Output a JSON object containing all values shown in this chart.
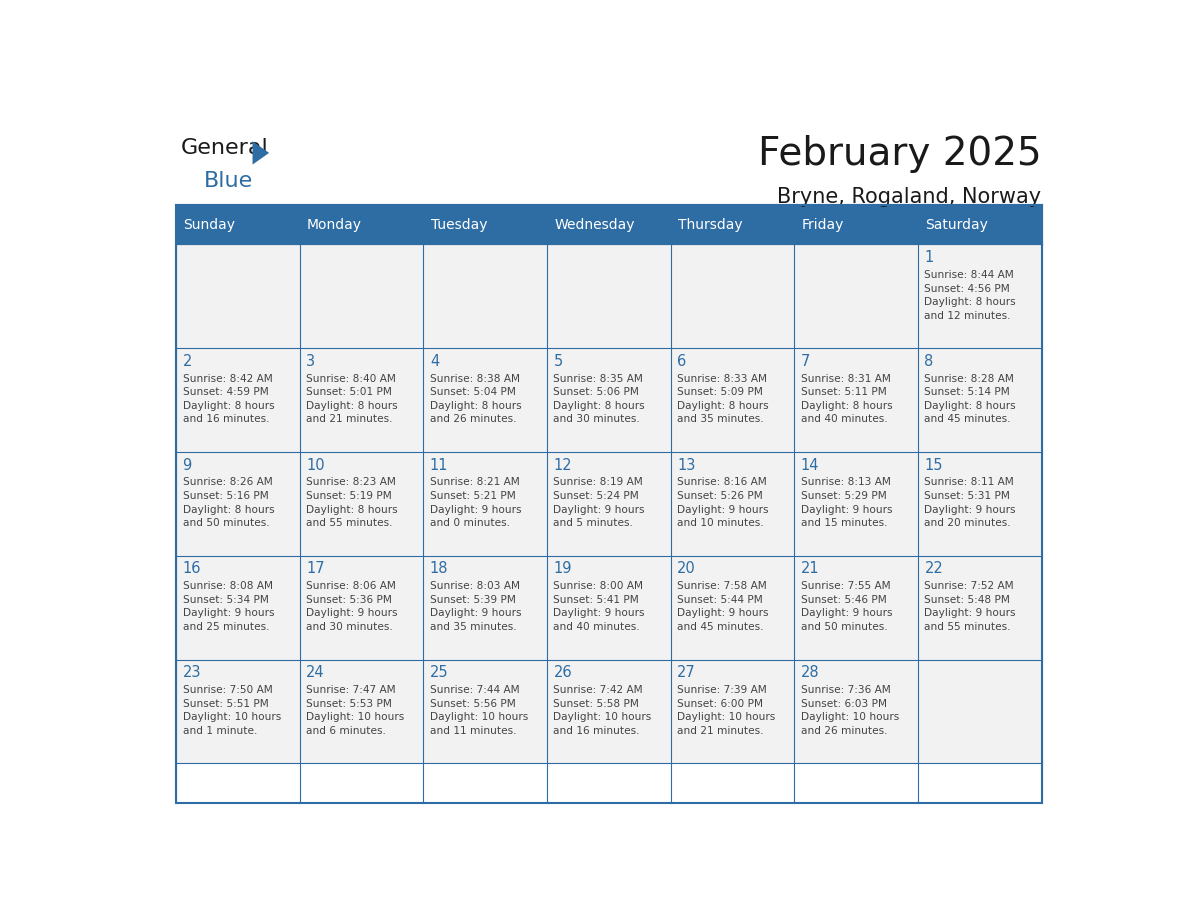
{
  "title": "February 2025",
  "subtitle": "Bryne, Rogaland, Norway",
  "header_bg": "#2E6DA4",
  "header_text_color": "#FFFFFF",
  "cell_bg": "#F2F2F2",
  "day_number_color": "#2E6DA4",
  "info_text_color": "#444444",
  "border_color": "#2E6DA4",
  "days_of_week": [
    "Sunday",
    "Monday",
    "Tuesday",
    "Wednesday",
    "Thursday",
    "Friday",
    "Saturday"
  ],
  "weeks": [
    [
      {
        "day": 0,
        "info": ""
      },
      {
        "day": 0,
        "info": ""
      },
      {
        "day": 0,
        "info": ""
      },
      {
        "day": 0,
        "info": ""
      },
      {
        "day": 0,
        "info": ""
      },
      {
        "day": 0,
        "info": ""
      },
      {
        "day": 1,
        "info": "Sunrise: 8:44 AM\nSunset: 4:56 PM\nDaylight: 8 hours\nand 12 minutes."
      }
    ],
    [
      {
        "day": 2,
        "info": "Sunrise: 8:42 AM\nSunset: 4:59 PM\nDaylight: 8 hours\nand 16 minutes."
      },
      {
        "day": 3,
        "info": "Sunrise: 8:40 AM\nSunset: 5:01 PM\nDaylight: 8 hours\nand 21 minutes."
      },
      {
        "day": 4,
        "info": "Sunrise: 8:38 AM\nSunset: 5:04 PM\nDaylight: 8 hours\nand 26 minutes."
      },
      {
        "day": 5,
        "info": "Sunrise: 8:35 AM\nSunset: 5:06 PM\nDaylight: 8 hours\nand 30 minutes."
      },
      {
        "day": 6,
        "info": "Sunrise: 8:33 AM\nSunset: 5:09 PM\nDaylight: 8 hours\nand 35 minutes."
      },
      {
        "day": 7,
        "info": "Sunrise: 8:31 AM\nSunset: 5:11 PM\nDaylight: 8 hours\nand 40 minutes."
      },
      {
        "day": 8,
        "info": "Sunrise: 8:28 AM\nSunset: 5:14 PM\nDaylight: 8 hours\nand 45 minutes."
      }
    ],
    [
      {
        "day": 9,
        "info": "Sunrise: 8:26 AM\nSunset: 5:16 PM\nDaylight: 8 hours\nand 50 minutes."
      },
      {
        "day": 10,
        "info": "Sunrise: 8:23 AM\nSunset: 5:19 PM\nDaylight: 8 hours\nand 55 minutes."
      },
      {
        "day": 11,
        "info": "Sunrise: 8:21 AM\nSunset: 5:21 PM\nDaylight: 9 hours\nand 0 minutes."
      },
      {
        "day": 12,
        "info": "Sunrise: 8:19 AM\nSunset: 5:24 PM\nDaylight: 9 hours\nand 5 minutes."
      },
      {
        "day": 13,
        "info": "Sunrise: 8:16 AM\nSunset: 5:26 PM\nDaylight: 9 hours\nand 10 minutes."
      },
      {
        "day": 14,
        "info": "Sunrise: 8:13 AM\nSunset: 5:29 PM\nDaylight: 9 hours\nand 15 minutes."
      },
      {
        "day": 15,
        "info": "Sunrise: 8:11 AM\nSunset: 5:31 PM\nDaylight: 9 hours\nand 20 minutes."
      }
    ],
    [
      {
        "day": 16,
        "info": "Sunrise: 8:08 AM\nSunset: 5:34 PM\nDaylight: 9 hours\nand 25 minutes."
      },
      {
        "day": 17,
        "info": "Sunrise: 8:06 AM\nSunset: 5:36 PM\nDaylight: 9 hours\nand 30 minutes."
      },
      {
        "day": 18,
        "info": "Sunrise: 8:03 AM\nSunset: 5:39 PM\nDaylight: 9 hours\nand 35 minutes."
      },
      {
        "day": 19,
        "info": "Sunrise: 8:00 AM\nSunset: 5:41 PM\nDaylight: 9 hours\nand 40 minutes."
      },
      {
        "day": 20,
        "info": "Sunrise: 7:58 AM\nSunset: 5:44 PM\nDaylight: 9 hours\nand 45 minutes."
      },
      {
        "day": 21,
        "info": "Sunrise: 7:55 AM\nSunset: 5:46 PM\nDaylight: 9 hours\nand 50 minutes."
      },
      {
        "day": 22,
        "info": "Sunrise: 7:52 AM\nSunset: 5:48 PM\nDaylight: 9 hours\nand 55 minutes."
      }
    ],
    [
      {
        "day": 23,
        "info": "Sunrise: 7:50 AM\nSunset: 5:51 PM\nDaylight: 10 hours\nand 1 minute."
      },
      {
        "day": 24,
        "info": "Sunrise: 7:47 AM\nSunset: 5:53 PM\nDaylight: 10 hours\nand 6 minutes."
      },
      {
        "day": 25,
        "info": "Sunrise: 7:44 AM\nSunset: 5:56 PM\nDaylight: 10 hours\nand 11 minutes."
      },
      {
        "day": 26,
        "info": "Sunrise: 7:42 AM\nSunset: 5:58 PM\nDaylight: 10 hours\nand 16 minutes."
      },
      {
        "day": 27,
        "info": "Sunrise: 7:39 AM\nSunset: 6:00 PM\nDaylight: 10 hours\nand 21 minutes."
      },
      {
        "day": 28,
        "info": "Sunrise: 7:36 AM\nSunset: 6:03 PM\nDaylight: 10 hours\nand 26 minutes."
      },
      {
        "day": 0,
        "info": ""
      }
    ]
  ],
  "logo_text_general": "General",
  "logo_text_blue": "Blue",
  "logo_color_general": "#1a1a1a",
  "logo_color_blue": "#2E6DA4",
  "logo_triangle_color": "#2E6DA4"
}
